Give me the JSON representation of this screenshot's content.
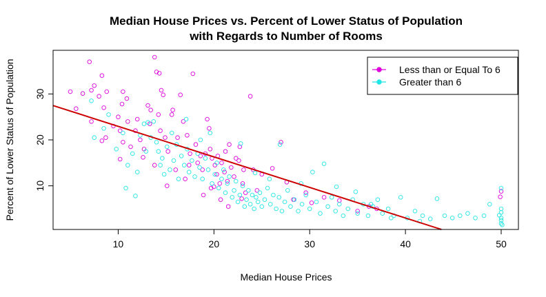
{
  "chart_data": {
    "type": "scatter",
    "title": "Median House Prices vs. Percent of Lower Status of Population",
    "subtitle": "with Regards to Number of Rooms",
    "xlabel": "Median House Prices",
    "ylabel": "Percent of Lower Status of Population",
    "xlim": [
      3.2,
      51.8
    ],
    "ylim": [
      0.5,
      39.5
    ],
    "xticks": [
      10,
      20,
      30,
      40,
      50
    ],
    "yticks": [
      10,
      20,
      30
    ],
    "grid": false,
    "legend_position": "top-right",
    "series": [
      {
        "name": "Less than or Equal To 6",
        "color": "#dd00dd",
        "points": [
          [
            5,
            30.5
          ],
          [
            5.6,
            26.8
          ],
          [
            6.3,
            30.1
          ],
          [
            7,
            37.0
          ],
          [
            7.2,
            30.8
          ],
          [
            7.5,
            31.8
          ],
          [
            7.2,
            24.0
          ],
          [
            8,
            29.5
          ],
          [
            8.3,
            34.0
          ],
          [
            8.5,
            27.0
          ],
          [
            8.8,
            30.5
          ],
          [
            8.3,
            19.8
          ],
          [
            8.7,
            20.5
          ],
          [
            9.5,
            23.0
          ],
          [
            10,
            25.0
          ],
          [
            10.5,
            30.5
          ],
          [
            10.4,
            27.8
          ],
          [
            10.9,
            29.0
          ],
          [
            10.2,
            22.0
          ],
          [
            10.5,
            19.5
          ],
          [
            10.2,
            15.8
          ],
          [
            11,
            24.0
          ],
          [
            11.3,
            18.5
          ],
          [
            11.8,
            22.0
          ],
          [
            12,
            24.5
          ],
          [
            12.3,
            20.0
          ],
          [
            12.7,
            18.0
          ],
          [
            13.1,
            27.5
          ],
          [
            13.3,
            23.5
          ],
          [
            13.4,
            26.5
          ],
          [
            13.8,
            38.0
          ],
          [
            14,
            34.8
          ],
          [
            14.3,
            34.5
          ],
          [
            14.5,
            30.8
          ],
          [
            14.7,
            29.8
          ],
          [
            14.2,
            25.5
          ],
          [
            14.4,
            22.0
          ],
          [
            14.9,
            20.5
          ],
          [
            15.2,
            17.5
          ],
          [
            15.6,
            25.5
          ],
          [
            15.7,
            26.5
          ],
          [
            16.2,
            20.5
          ],
          [
            16.5,
            29.8
          ],
          [
            16.8,
            24.0
          ],
          [
            17.2,
            21.0
          ],
          [
            17.5,
            17.0
          ],
          [
            17.8,
            34.4
          ],
          [
            17.4,
            14.5
          ],
          [
            18.1,
            19.0
          ],
          [
            18.3,
            15.0
          ],
          [
            18.6,
            16.5
          ],
          [
            18.8,
            13.5
          ],
          [
            19.1,
            17.0
          ],
          [
            19.3,
            24.5
          ],
          [
            19.5,
            22.5
          ],
          [
            19.6,
            18.0
          ],
          [
            19.8,
            16.0
          ],
          [
            20.1,
            14.5
          ],
          [
            20.3,
            12.5
          ],
          [
            20.4,
            16.5
          ],
          [
            20.6,
            10.5
          ],
          [
            20.8,
            15.0
          ],
          [
            21.1,
            13.0
          ],
          [
            21.2,
            17.5
          ],
          [
            21.4,
            11.0
          ],
          [
            21.6,
            19.0
          ],
          [
            21.8,
            14.0
          ],
          [
            22.1,
            12.0
          ],
          [
            22.3,
            16.0
          ],
          [
            22.6,
            15.5
          ],
          [
            22.7,
            18.5
          ],
          [
            23,
            10.5
          ],
          [
            23.1,
            13.5
          ],
          [
            23.3,
            8.5
          ],
          [
            23.8,
            29.5
          ],
          [
            24.1,
            13.5
          ],
          [
            24.5,
            9.0
          ],
          [
            25,
            12.5
          ],
          [
            18.9,
            8.0
          ],
          [
            19.7,
            9.5
          ],
          [
            20.7,
            7.0
          ],
          [
            21.5,
            5.5
          ],
          [
            17.0,
            11.5
          ],
          [
            16.0,
            13.5
          ],
          [
            15.1,
            10.0
          ],
          [
            13.8,
            14.5
          ],
          [
            12.6,
            16.2
          ],
          [
            27.0,
            19.5
          ],
          [
            26.1,
            13.8
          ],
          [
            27.6,
            10.8
          ],
          [
            28.3,
            7.0
          ],
          [
            29.6,
            8.5
          ],
          [
            30.2,
            6.3
          ],
          [
            31.5,
            7.5
          ],
          [
            33.1,
            6.8
          ],
          [
            35,
            4.5
          ],
          [
            36.2,
            5.5
          ],
          [
            37.0,
            5.0
          ],
          [
            50,
            8.8
          ],
          [
            49.9,
            7.6
          ],
          [
            20.0,
            9.8
          ],
          [
            22.9,
            7.2
          ]
        ]
      },
      {
        "name": "Greater than 6",
        "color": "#22e5e5",
        "points": [
          [
            7.2,
            28.5
          ],
          [
            7.5,
            20.5
          ],
          [
            8.5,
            22.5
          ],
          [
            9,
            25.5
          ],
          [
            9.8,
            18.0
          ],
          [
            10.5,
            21.5
          ],
          [
            11,
            14.5
          ],
          [
            11.5,
            17.0
          ],
          [
            12,
            13.0
          ],
          [
            12.3,
            21.0
          ],
          [
            12.7,
            23.5
          ],
          [
            13.1,
            23.8
          ],
          [
            13.4,
            20.5
          ],
          [
            13.7,
            24.0
          ],
          [
            14,
            19.5
          ],
          [
            14.2,
            17.5
          ],
          [
            14.4,
            14.5
          ],
          [
            14.6,
            16.0
          ],
          [
            14.8,
            12.5
          ],
          [
            15.1,
            18.5
          ],
          [
            15.4,
            13.5
          ],
          [
            15.8,
            15.5
          ],
          [
            16.1,
            19.0
          ],
          [
            16.3,
            11.5
          ],
          [
            16.6,
            16.5
          ],
          [
            16.9,
            14.5
          ],
          [
            17.2,
            18.0
          ],
          [
            17.4,
            13.0
          ],
          [
            17.7,
            15.5
          ],
          [
            18,
            12.0
          ],
          [
            18.3,
            17.0
          ],
          [
            18.5,
            14.0
          ],
          [
            18.8,
            11.5
          ],
          [
            19.1,
            16.0
          ],
          [
            19.4,
            13.5
          ],
          [
            19.6,
            21.5
          ],
          [
            19.8,
            10.5
          ],
          [
            20.1,
            12.5
          ],
          [
            20.3,
            15.0
          ],
          [
            20.5,
            9.5
          ],
          [
            20.8,
            11.5
          ],
          [
            21,
            13.5
          ],
          [
            21.2,
            8.5
          ],
          [
            21.4,
            10.5
          ],
          [
            21.6,
            12.0
          ],
          [
            21.9,
            7.5
          ],
          [
            22.1,
            9.0
          ],
          [
            22.3,
            11.0
          ],
          [
            22.5,
            6.5
          ],
          [
            22.7,
            8.0
          ],
          [
            23,
            10.0
          ],
          [
            23.2,
            5.5
          ],
          [
            23.4,
            7.0
          ],
          [
            23.6,
            9.0
          ],
          [
            23.8,
            6.0
          ],
          [
            24,
            8.0
          ],
          [
            24.2,
            5.0
          ],
          [
            24.4,
            7.5
          ],
          [
            24.6,
            6.5
          ],
          [
            24.8,
            8.5
          ],
          [
            25,
            5.5
          ],
          [
            25.3,
            7.0
          ],
          [
            25.6,
            9.5
          ],
          [
            25.9,
            6.0
          ],
          [
            26.2,
            8.0
          ],
          [
            26.5,
            5.0
          ],
          [
            26.8,
            7.5
          ],
          [
            27.1,
            4.5
          ],
          [
            27.4,
            6.5
          ],
          [
            27.7,
            9.0
          ],
          [
            28,
            5.5
          ],
          [
            28.4,
            7.0
          ],
          [
            28.8,
            4.5
          ],
          [
            29.2,
            6.0
          ],
          [
            29.6,
            8.0
          ],
          [
            30,
            5.0
          ],
          [
            30.3,
            13.0
          ],
          [
            30.7,
            6.5
          ],
          [
            31.1,
            4.0
          ],
          [
            31.5,
            14.8
          ],
          [
            31.9,
            5.5
          ],
          [
            32.3,
            7.5
          ],
          [
            32.7,
            4.5
          ],
          [
            33.1,
            6.0
          ],
          [
            33.5,
            3.5
          ],
          [
            34,
            5.0
          ],
          [
            34.5,
            7.0
          ],
          [
            35,
            4.0
          ],
          [
            35.6,
            6.0
          ],
          [
            36.1,
            3.5
          ],
          [
            36.6,
            5.5
          ],
          [
            37.1,
            7.0
          ],
          [
            37.6,
            4.0
          ],
          [
            38.2,
            5.0
          ],
          [
            38.8,
            3.5
          ],
          [
            39.5,
            7.5
          ],
          [
            40.2,
            3.0
          ],
          [
            41,
            4.5
          ],
          [
            41.8,
            3.5
          ],
          [
            42.6,
            2.8
          ],
          [
            43.3,
            7.2
          ],
          [
            44.1,
            3.5
          ],
          [
            44.9,
            3.0
          ],
          [
            45.7,
            3.5
          ],
          [
            46.5,
            4.0
          ],
          [
            47.3,
            3.0
          ],
          [
            48.2,
            3.5
          ],
          [
            48.8,
            6.0
          ],
          [
            50,
            9.5
          ],
          [
            50,
            5.0
          ],
          [
            50,
            4.2
          ],
          [
            50,
            3.0
          ],
          [
            50,
            2.5
          ],
          [
            50,
            1.8
          ],
          [
            49.8,
            3.6
          ],
          [
            50.1,
            1.5
          ],
          [
            11.8,
            7.8
          ],
          [
            10.8,
            9.5
          ],
          [
            12.9,
            17.5
          ],
          [
            15.6,
            21.5
          ],
          [
            17.1,
            24.5
          ],
          [
            18.6,
            20.0
          ],
          [
            22.8,
            19.2
          ],
          [
            24.3,
            12.8
          ],
          [
            25.8,
            11.5
          ],
          [
            26.9,
            19.0
          ],
          [
            29.1,
            10.5
          ],
          [
            32.8,
            9.8
          ],
          [
            34.8,
            8.7
          ],
          [
            36.4,
            6.0
          ],
          [
            38.5,
            3.0
          ],
          [
            41.5,
            2.3
          ]
        ]
      }
    ],
    "regression_line": {
      "color": "#cc0000",
      "intercept": 29.6,
      "slope": -0.665
    }
  }
}
